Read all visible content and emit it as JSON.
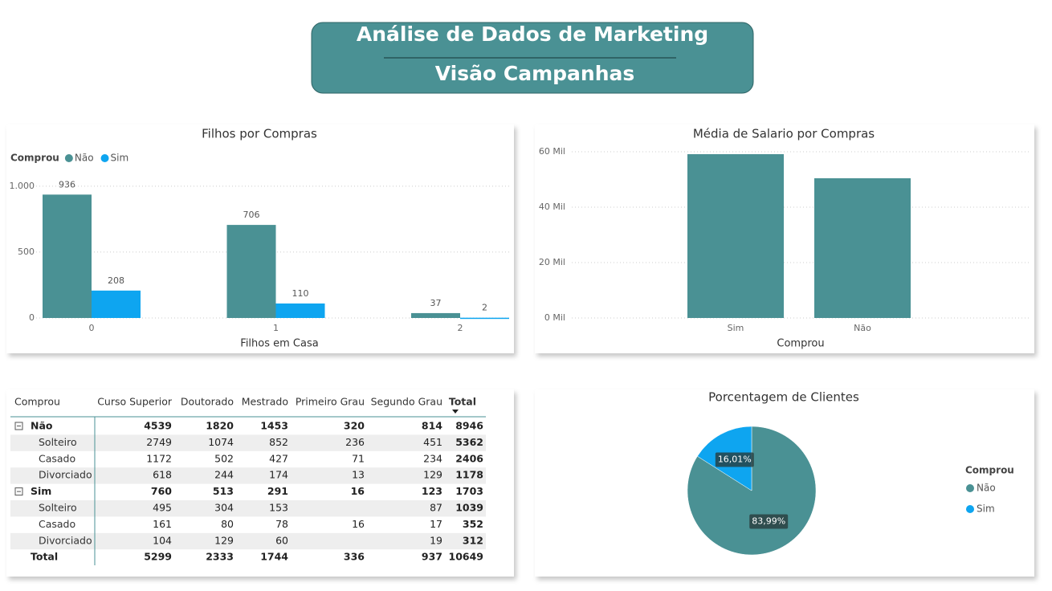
{
  "header": {
    "title": "Análise de Dados de Marketing",
    "subtitle": "Visão Campanhas"
  },
  "chart_data": [
    {
      "type": "bar",
      "title": "Filhos por Compras",
      "legend_title": "Comprou",
      "legend": "top-left",
      "x_label": "Filhos em Casa",
      "categories": [
        "0",
        "1",
        "2"
      ],
      "series": [
        {
          "name": "Não",
          "color": "#4a9194",
          "values": [
            936,
            706,
            37
          ]
        },
        {
          "name": "Sim",
          "color": "#0ea5f0",
          "values": [
            208,
            110,
            2
          ]
        }
      ],
      "ylim": [
        0,
        1200
      ],
      "yticks": [
        0,
        500,
        {
          "value": 1000,
          "label": "1.000"
        }
      ],
      "grid": true,
      "data_labels": true
    },
    {
      "type": "bar",
      "title": "Média de Salario por Compras",
      "x_label": "Comprou",
      "categories": [
        "Sim",
        "Não"
      ],
      "color": "#4a9194",
      "values": [
        59130,
        50435
      ],
      "ylim": [
        0,
        60000
      ],
      "yticks": [
        {
          "value": 0,
          "label": "0 Mil"
        },
        {
          "value": 20000,
          "label": "20 Mil"
        },
        {
          "value": 40000,
          "label": "40 Mil"
        },
        {
          "value": 60000,
          "label": "60 Mil"
        }
      ],
      "grid": true
    },
    {
      "type": "pie",
      "title": "Porcentagem de Clientes",
      "legend_title": "Comprou",
      "legend": "right",
      "categories": [
        "Não",
        "Sim"
      ],
      "values": [
        83.99,
        16.01
      ],
      "value_labels": [
        "83,99%",
        "16,01%"
      ],
      "colors": [
        "#4a9194",
        "#0ea5f0"
      ]
    }
  ],
  "table": {
    "columns": [
      "Comprou",
      "Curso Superior",
      "Doutorado",
      "Mestrado",
      "Primeiro Grau",
      "Segundo Grau",
      "Total"
    ],
    "groups": [
      {
        "label": "Não",
        "values": [
          4539,
          1820,
          1453,
          320,
          814,
          8946
        ],
        "children": [
          {
            "label": "Solteiro",
            "values": [
              2749,
              1074,
              852,
              236,
              451,
              5362
            ]
          },
          {
            "label": "Casado",
            "values": [
              1172,
              502,
              427,
              71,
              234,
              2406
            ]
          },
          {
            "label": "Divorciado",
            "values": [
              618,
              244,
              174,
              13,
              129,
              1178
            ]
          }
        ]
      },
      {
        "label": "Sim",
        "values": [
          760,
          513,
          291,
          16,
          123,
          1703
        ],
        "children": [
          {
            "label": "Solteiro",
            "values": [
              495,
              304,
              153,
              null,
              87,
              1039
            ]
          },
          {
            "label": "Casado",
            "values": [
              161,
              80,
              78,
              16,
              17,
              352
            ]
          },
          {
            "label": "Divorciado",
            "values": [
              104,
              129,
              60,
              null,
              19,
              312
            ]
          }
        ]
      }
    ],
    "total": {
      "label": "Total",
      "values": [
        5299,
        2333,
        1744,
        336,
        937,
        10649
      ]
    }
  }
}
